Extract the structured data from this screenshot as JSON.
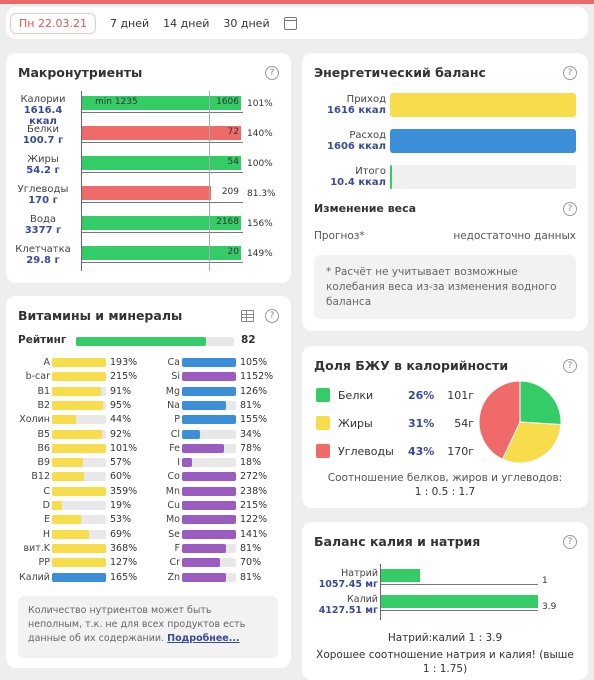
{
  "colors": {
    "green": "#33cc66",
    "red": "#f06a6a",
    "yellow": "#f7dc4c",
    "blue": "#3a8fd8",
    "purple": "#9a5cc0",
    "navy": "#3a4a9a"
  },
  "datebar": {
    "items": [
      "Пн 22.03.21",
      "7 дней",
      "14 дней",
      "30 дней"
    ],
    "calendar_icon": "calendar-icon"
  },
  "macros": {
    "title": "Макронутриенты",
    "help": "?",
    "rows": [
      {
        "name": "Калории",
        "amount": "1616.4",
        "unit": "ккал",
        "value_text": "1606",
        "min_text": "min 1235",
        "percent": "101%",
        "fill": 1.01,
        "color": "green"
      },
      {
        "name": "Белки",
        "amount": "100.7",
        "unit": "г",
        "value_text": "72",
        "percent": "140%",
        "fill": 1.4,
        "color": "red"
      },
      {
        "name": "Жиры",
        "amount": "54.2",
        "unit": "г",
        "value_text": "54",
        "percent": "100%",
        "fill": 1.0,
        "color": "green"
      },
      {
        "name": "Углеводы",
        "amount": "170",
        "unit": "г",
        "value_text": "209",
        "percent": "81.3%",
        "fill": 0.813,
        "color": "red"
      },
      {
        "name": "Вода",
        "amount": "3377",
        "unit": "г",
        "value_text": "2168",
        "percent": "156%",
        "fill": 1.56,
        "color": "green"
      },
      {
        "name": "Клетчатка",
        "amount": "29.8",
        "unit": "г",
        "value_text": "20",
        "percent": "149%",
        "fill": 1.49,
        "color": "green"
      }
    ]
  },
  "energy": {
    "title": "Энергетический баланс",
    "help": "?",
    "rows": [
      {
        "label": "Приход",
        "value": "1616 ккал",
        "color": "yellow",
        "fill": 1.0
      },
      {
        "label": "Расход",
        "value": "1606 ккал",
        "color": "blue",
        "fill": 1.0
      },
      {
        "label": "Итого",
        "value": "10.4 ккал",
        "color": "green",
        "fill": 0.006
      }
    ],
    "weight_title": "Изменение веса",
    "forecast_label": "Прогноз*",
    "forecast_value": "недостаточно данных",
    "note": "* Расчёт не учитывает возможные колебания веса из-за изменения водного баланса"
  },
  "vitamins": {
    "title": "Витамины и минералы",
    "table_icon": "table-icon",
    "help": "?",
    "rating_label": "Рейтинг",
    "rating_value": "82",
    "rating_fill": 0.82,
    "left": [
      {
        "name": "A",
        "pct": "193%",
        "fill": 1.0,
        "color": "yellow"
      },
      {
        "name": "b-car",
        "pct": "215%",
        "fill": 1.0,
        "color": "yellow"
      },
      {
        "name": "B1",
        "pct": "91%",
        "fill": 0.91,
        "color": "yellow"
      },
      {
        "name": "B2",
        "pct": "95%",
        "fill": 0.95,
        "color": "yellow"
      },
      {
        "name": "Холин",
        "pct": "44%",
        "fill": 0.44,
        "color": "yellow"
      },
      {
        "name": "B5",
        "pct": "92%",
        "fill": 0.92,
        "color": "yellow"
      },
      {
        "name": "B6",
        "pct": "101%",
        "fill": 1.0,
        "color": "yellow"
      },
      {
        "name": "B9",
        "pct": "57%",
        "fill": 0.57,
        "color": "yellow"
      },
      {
        "name": "B12",
        "pct": "60%",
        "fill": 0.6,
        "color": "yellow"
      },
      {
        "name": "C",
        "pct": "359%",
        "fill": 1.0,
        "color": "yellow"
      },
      {
        "name": "D",
        "pct": "19%",
        "fill": 0.19,
        "color": "yellow"
      },
      {
        "name": "E",
        "pct": "53%",
        "fill": 0.53,
        "color": "yellow"
      },
      {
        "name": "H",
        "pct": "69%",
        "fill": 0.69,
        "color": "yellow"
      },
      {
        "name": "вит.K",
        "pct": "368%",
        "fill": 1.0,
        "color": "yellow"
      },
      {
        "name": "PP",
        "pct": "127%",
        "fill": 1.0,
        "color": "yellow"
      },
      {
        "name": "Калий",
        "pct": "165%",
        "fill": 1.0,
        "color": "blue"
      }
    ],
    "right": [
      {
        "name": "Ca",
        "pct": "105%",
        "fill": 1.0,
        "color": "blue"
      },
      {
        "name": "Si",
        "pct": "1152%",
        "fill": 1.0,
        "color": "purple"
      },
      {
        "name": "Mg",
        "pct": "126%",
        "fill": 1.0,
        "color": "blue"
      },
      {
        "name": "Na",
        "pct": "81%",
        "fill": 0.81,
        "color": "blue"
      },
      {
        "name": "P",
        "pct": "155%",
        "fill": 1.0,
        "color": "blue"
      },
      {
        "name": "Cl",
        "pct": "34%",
        "fill": 0.34,
        "color": "blue"
      },
      {
        "name": "Fe",
        "pct": "78%",
        "fill": 0.78,
        "color": "purple"
      },
      {
        "name": "I",
        "pct": "18%",
        "fill": 0.18,
        "color": "purple"
      },
      {
        "name": "Co",
        "pct": "272%",
        "fill": 1.0,
        "color": "purple"
      },
      {
        "name": "Mn",
        "pct": "238%",
        "fill": 1.0,
        "color": "purple"
      },
      {
        "name": "Cu",
        "pct": "215%",
        "fill": 1.0,
        "color": "purple"
      },
      {
        "name": "Mo",
        "pct": "122%",
        "fill": 1.0,
        "color": "purple"
      },
      {
        "name": "Se",
        "pct": "141%",
        "fill": 1.0,
        "color": "purple"
      },
      {
        "name": "F",
        "pct": "81%",
        "fill": 0.81,
        "color": "purple"
      },
      {
        "name": "Cr",
        "pct": "70%",
        "fill": 0.7,
        "color": "purple"
      },
      {
        "name": "Zn",
        "pct": "81%",
        "fill": 0.81,
        "color": "purple"
      }
    ],
    "note": "Количество нутриентов может быть неполным, т.к. не для всех продуктов есть данные об их содержании.",
    "note_link": "Подробнее..."
  },
  "bju": {
    "title": "Доля БЖУ в калорийности",
    "help": "?",
    "rows": [
      {
        "name": "Белки",
        "pct": "26%",
        "grams": "101г",
        "color": "green",
        "share": 26
      },
      {
        "name": "Жиры",
        "pct": "31%",
        "grams": "54г",
        "color": "yellow",
        "share": 31
      },
      {
        "name": "Углеводы",
        "pct": "43%",
        "grams": "170г",
        "color": "red",
        "share": 43
      }
    ],
    "ratio_label": "Соотношение белков, жиров и углеводов:",
    "ratio_value": "1 : 0.5 : 1.7"
  },
  "kna": {
    "title": "Баланс калия и натрия",
    "help": "?",
    "rows": [
      {
        "label": "Натрий",
        "value": "1057.45 мг",
        "ratio": "1",
        "fill": 0.256
      },
      {
        "label": "Калий",
        "value": "4127.51 мг",
        "ratio": "3.9",
        "fill": 1.0
      }
    ],
    "ratio_text": "Натрий:калий 1 : 3.9",
    "verdict": "Хорошее соотношение натрия и калия! (выше 1 : 1.75)"
  }
}
